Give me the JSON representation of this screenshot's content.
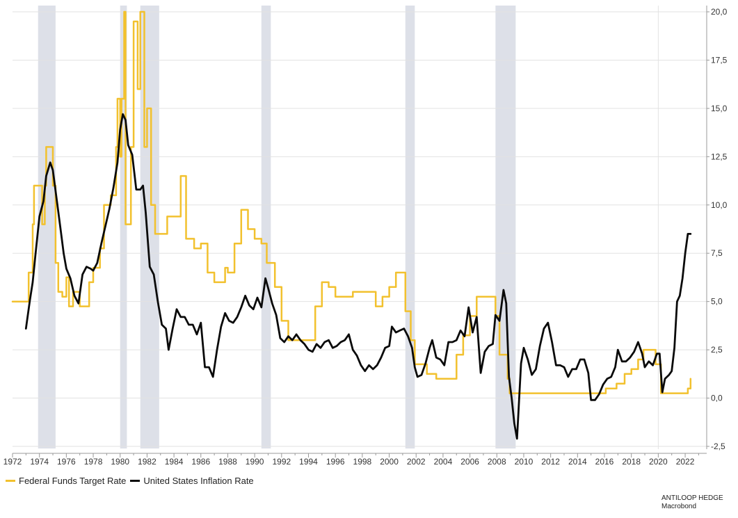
{
  "colors": {
    "fed_funds": "#F2C12E",
    "inflation": "#0a0a0a",
    "recession": "#dde0e8",
    "grid": "#e2e2e2"
  },
  "legend": {
    "fed_funds_label": "Federal Funds Target Rate",
    "inflation_label": "United States Inflation Rate"
  },
  "credit": {
    "line1": "ANTILOOP HEDGE",
    "line2": "Macrobond"
  },
  "chart_data": {
    "type": "line",
    "title": "",
    "xlabel": "",
    "ylabel": "",
    "xlim": [
      1972.0,
      2023.6
    ],
    "ylim": [
      -2.5,
      20.0
    ],
    "y_axis_position": "right",
    "grid": true,
    "legend_position": "bottom-left",
    "x_ticks": [
      1972,
      1974,
      1976,
      1978,
      1980,
      1982,
      1984,
      1986,
      1988,
      1990,
      1992,
      1994,
      1996,
      1998,
      2000,
      2002,
      2004,
      2006,
      2008,
      2010,
      2012,
      2014,
      2016,
      2018,
      2020,
      2022
    ],
    "y_ticks": [
      -2.5,
      0.0,
      2.5,
      5.0,
      7.5,
      10.0,
      12.5,
      15.0,
      17.5,
      20.0
    ],
    "y_tick_labels": [
      "-2,5",
      "0,0",
      "2,5",
      "5,0",
      "7,5",
      "10,0",
      "12,5",
      "15,0",
      "17,5",
      "20,0"
    ],
    "recessions": [
      [
        1973.9,
        1975.2
      ],
      [
        1980.0,
        1980.5
      ],
      [
        1981.5,
        1982.9
      ],
      [
        1990.5,
        1991.2
      ],
      [
        2001.2,
        2001.9
      ],
      [
        2007.9,
        2009.4
      ]
    ],
    "series": [
      {
        "name": "Federal Funds Target Rate",
        "points": [
          [
            1972.0,
            5.0
          ],
          [
            1973.0,
            5.0
          ],
          [
            1973.2,
            6.5
          ],
          [
            1973.5,
            9.0
          ],
          [
            1973.6,
            11.0
          ],
          [
            1974.1,
            11.0
          ],
          [
            1974.2,
            9.0
          ],
          [
            1974.4,
            11.0
          ],
          [
            1974.5,
            13.0
          ],
          [
            1974.9,
            13.0
          ],
          [
            1975.0,
            11.0
          ],
          [
            1975.2,
            7.0
          ],
          [
            1975.4,
            5.5
          ],
          [
            1975.7,
            5.25
          ],
          [
            1976.0,
            6.25
          ],
          [
            1976.2,
            4.75
          ],
          [
            1976.5,
            5.5
          ],
          [
            1977.0,
            4.75
          ],
          [
            1977.7,
            6.0
          ],
          [
            1978.0,
            6.75
          ],
          [
            1978.5,
            7.75
          ],
          [
            1978.8,
            10.0
          ],
          [
            1979.3,
            10.5
          ],
          [
            1979.7,
            13.0
          ],
          [
            1979.8,
            15.5
          ],
          [
            1980.0,
            12.5
          ],
          [
            1980.1,
            15.5
          ],
          [
            1980.3,
            20.0
          ],
          [
            1980.4,
            9.0
          ],
          [
            1980.6,
            9.0
          ],
          [
            1980.8,
            13.0
          ],
          [
            1981.0,
            19.5
          ],
          [
            1981.3,
            16.0
          ],
          [
            1981.5,
            20.0
          ],
          [
            1981.8,
            13.0
          ],
          [
            1982.0,
            15.0
          ],
          [
            1982.3,
            10.0
          ],
          [
            1982.6,
            8.5
          ],
          [
            1983.0,
            8.5
          ],
          [
            1983.5,
            9.4
          ],
          [
            1984.0,
            9.4
          ],
          [
            1984.5,
            11.5
          ],
          [
            1984.9,
            8.25
          ],
          [
            1985.5,
            7.75
          ],
          [
            1986.0,
            8.0
          ],
          [
            1986.5,
            6.5
          ],
          [
            1987.0,
            6.0
          ],
          [
            1987.8,
            6.75
          ],
          [
            1988.0,
            6.5
          ],
          [
            1988.5,
            8.0
          ],
          [
            1989.0,
            9.75
          ],
          [
            1989.5,
            8.75
          ],
          [
            1990.0,
            8.25
          ],
          [
            1990.5,
            8.0
          ],
          [
            1990.9,
            7.0
          ],
          [
            1991.5,
            5.75
          ],
          [
            1992.0,
            4.0
          ],
          [
            1992.5,
            3.0
          ],
          [
            1993.0,
            3.0
          ],
          [
            1994.0,
            3.0
          ],
          [
            1994.5,
            4.75
          ],
          [
            1995.0,
            6.0
          ],
          [
            1995.5,
            5.75
          ],
          [
            1996.0,
            5.25
          ],
          [
            1997.0,
            5.25
          ],
          [
            1997.3,
            5.5
          ],
          [
            1998.5,
            5.5
          ],
          [
            1999.0,
            4.75
          ],
          [
            1999.5,
            5.25
          ],
          [
            2000.0,
            5.75
          ],
          [
            2000.5,
            6.5
          ],
          [
            2000.9,
            6.5
          ],
          [
            2001.2,
            4.5
          ],
          [
            2001.6,
            3.0
          ],
          [
            2001.9,
            1.75
          ],
          [
            2002.8,
            1.25
          ],
          [
            2003.5,
            1.0
          ],
          [
            2004.4,
            1.0
          ],
          [
            2005.0,
            2.25
          ],
          [
            2005.5,
            3.25
          ],
          [
            2006.0,
            4.25
          ],
          [
            2006.5,
            5.25
          ],
          [
            2007.6,
            5.25
          ],
          [
            2007.9,
            4.25
          ],
          [
            2008.2,
            2.25
          ],
          [
            2008.8,
            1.0
          ],
          [
            2008.95,
            0.25
          ],
          [
            2015.9,
            0.25
          ],
          [
            2016.1,
            0.5
          ],
          [
            2016.9,
            0.75
          ],
          [
            2017.5,
            1.25
          ],
          [
            2018.0,
            1.5
          ],
          [
            2018.5,
            2.0
          ],
          [
            2018.9,
            2.5
          ],
          [
            2019.5,
            2.5
          ],
          [
            2019.8,
            1.75
          ],
          [
            2020.1,
            1.75
          ],
          [
            2020.2,
            0.25
          ],
          [
            2022.1,
            0.25
          ],
          [
            2022.2,
            0.5
          ],
          [
            2022.4,
            1.0
          ]
        ]
      },
      {
        "name": "United States Inflation Rate",
        "points": [
          [
            1973.0,
            3.6
          ],
          [
            1973.3,
            5.1
          ],
          [
            1973.5,
            6.0
          ],
          [
            1973.7,
            7.4
          ],
          [
            1974.0,
            9.4
          ],
          [
            1974.3,
            10.2
          ],
          [
            1974.5,
            11.5
          ],
          [
            1974.8,
            12.2
          ],
          [
            1975.0,
            11.8
          ],
          [
            1975.3,
            10.2
          ],
          [
            1975.6,
            8.6
          ],
          [
            1975.8,
            7.5
          ],
          [
            1976.0,
            6.7
          ],
          [
            1976.3,
            6.2
          ],
          [
            1976.6,
            5.3
          ],
          [
            1976.9,
            4.9
          ],
          [
            1977.2,
            6.4
          ],
          [
            1977.5,
            6.8
          ],
          [
            1977.8,
            6.7
          ],
          [
            1978.0,
            6.6
          ],
          [
            1978.3,
            7.0
          ],
          [
            1978.6,
            8.0
          ],
          [
            1978.9,
            8.9
          ],
          [
            1979.2,
            9.8
          ],
          [
            1979.5,
            10.9
          ],
          [
            1979.8,
            12.2
          ],
          [
            1980.0,
            13.9
          ],
          [
            1980.2,
            14.7
          ],
          [
            1980.4,
            14.4
          ],
          [
            1980.6,
            13.1
          ],
          [
            1980.9,
            12.6
          ],
          [
            1981.2,
            10.8
          ],
          [
            1981.5,
            10.8
          ],
          [
            1981.7,
            11.0
          ],
          [
            1981.9,
            9.6
          ],
          [
            1982.2,
            6.8
          ],
          [
            1982.5,
            6.4
          ],
          [
            1982.8,
            5.0
          ],
          [
            1983.1,
            3.8
          ],
          [
            1983.4,
            3.6
          ],
          [
            1983.6,
            2.5
          ],
          [
            1983.9,
            3.6
          ],
          [
            1984.2,
            4.6
          ],
          [
            1984.5,
            4.2
          ],
          [
            1984.8,
            4.2
          ],
          [
            1985.1,
            3.8
          ],
          [
            1985.4,
            3.8
          ],
          [
            1985.7,
            3.3
          ],
          [
            1986.0,
            3.9
          ],
          [
            1986.3,
            1.6
          ],
          [
            1986.6,
            1.6
          ],
          [
            1986.9,
            1.1
          ],
          [
            1987.2,
            2.5
          ],
          [
            1987.5,
            3.7
          ],
          [
            1987.8,
            4.4
          ],
          [
            1988.1,
            4.0
          ],
          [
            1988.4,
            3.9
          ],
          [
            1988.7,
            4.2
          ],
          [
            1989.0,
            4.7
          ],
          [
            1989.3,
            5.3
          ],
          [
            1989.6,
            4.8
          ],
          [
            1989.9,
            4.6
          ],
          [
            1990.2,
            5.2
          ],
          [
            1990.5,
            4.7
          ],
          [
            1990.8,
            6.2
          ],
          [
            1991.0,
            5.7
          ],
          [
            1991.3,
            4.9
          ],
          [
            1991.6,
            4.3
          ],
          [
            1991.9,
            3.1
          ],
          [
            1992.2,
            2.9
          ],
          [
            1992.5,
            3.2
          ],
          [
            1992.8,
            3.0
          ],
          [
            1993.1,
            3.3
          ],
          [
            1993.4,
            3.0
          ],
          [
            1993.7,
            2.8
          ],
          [
            1994.0,
            2.5
          ],
          [
            1994.3,
            2.4
          ],
          [
            1994.6,
            2.8
          ],
          [
            1994.9,
            2.6
          ],
          [
            1995.2,
            2.9
          ],
          [
            1995.5,
            3.0
          ],
          [
            1995.8,
            2.6
          ],
          [
            1996.1,
            2.7
          ],
          [
            1996.4,
            2.9
          ],
          [
            1996.7,
            3.0
          ],
          [
            1997.0,
            3.3
          ],
          [
            1997.3,
            2.5
          ],
          [
            1997.6,
            2.2
          ],
          [
            1997.9,
            1.7
          ],
          [
            1998.2,
            1.4
          ],
          [
            1998.5,
            1.7
          ],
          [
            1998.8,
            1.5
          ],
          [
            1999.1,
            1.7
          ],
          [
            1999.4,
            2.1
          ],
          [
            1999.7,
            2.6
          ],
          [
            2000.0,
            2.7
          ],
          [
            2000.2,
            3.7
          ],
          [
            2000.5,
            3.4
          ],
          [
            2000.8,
            3.5
          ],
          [
            2001.1,
            3.6
          ],
          [
            2001.4,
            3.2
          ],
          [
            2001.7,
            2.6
          ],
          [
            2001.9,
            1.6
          ],
          [
            2002.1,
            1.1
          ],
          [
            2002.4,
            1.2
          ],
          [
            2002.7,
            1.8
          ],
          [
            2003.0,
            2.6
          ],
          [
            2003.2,
            3.0
          ],
          [
            2003.5,
            2.1
          ],
          [
            2003.8,
            2.0
          ],
          [
            2004.1,
            1.7
          ],
          [
            2004.4,
            2.9
          ],
          [
            2004.7,
            2.9
          ],
          [
            2005.0,
            3.0
          ],
          [
            2005.3,
            3.5
          ],
          [
            2005.6,
            3.2
          ],
          [
            2005.9,
            4.7
          ],
          [
            2006.2,
            3.4
          ],
          [
            2006.5,
            4.2
          ],
          [
            2006.8,
            1.3
          ],
          [
            2007.1,
            2.4
          ],
          [
            2007.4,
            2.7
          ],
          [
            2007.7,
            2.8
          ],
          [
            2007.9,
            4.3
          ],
          [
            2008.2,
            4.0
          ],
          [
            2008.5,
            5.6
          ],
          [
            2008.7,
            4.9
          ],
          [
            2008.9,
            1.1
          ],
          [
            2009.1,
            0.0
          ],
          [
            2009.3,
            -1.3
          ],
          [
            2009.5,
            -2.1
          ],
          [
            2009.8,
            1.8
          ],
          [
            2010.0,
            2.6
          ],
          [
            2010.3,
            2.0
          ],
          [
            2010.6,
            1.2
          ],
          [
            2010.9,
            1.5
          ],
          [
            2011.2,
            2.7
          ],
          [
            2011.5,
            3.6
          ],
          [
            2011.8,
            3.9
          ],
          [
            2012.1,
            2.9
          ],
          [
            2012.4,
            1.7
          ],
          [
            2012.7,
            1.7
          ],
          [
            2013.0,
            1.6
          ],
          [
            2013.3,
            1.1
          ],
          [
            2013.6,
            1.5
          ],
          [
            2013.9,
            1.5
          ],
          [
            2014.2,
            2.0
          ],
          [
            2014.5,
            2.0
          ],
          [
            2014.8,
            1.3
          ],
          [
            2015.0,
            -0.1
          ],
          [
            2015.3,
            -0.1
          ],
          [
            2015.6,
            0.2
          ],
          [
            2015.9,
            0.7
          ],
          [
            2016.2,
            1.0
          ],
          [
            2016.5,
            1.1
          ],
          [
            2016.8,
            1.6
          ],
          [
            2017.0,
            2.5
          ],
          [
            2017.3,
            1.9
          ],
          [
            2017.6,
            1.9
          ],
          [
            2017.9,
            2.1
          ],
          [
            2018.2,
            2.4
          ],
          [
            2018.5,
            2.9
          ],
          [
            2018.8,
            2.3
          ],
          [
            2019.0,
            1.6
          ],
          [
            2019.3,
            1.9
          ],
          [
            2019.6,
            1.7
          ],
          [
            2019.9,
            2.3
          ],
          [
            2020.1,
            2.3
          ],
          [
            2020.3,
            0.3
          ],
          [
            2020.5,
            1.0
          ],
          [
            2020.8,
            1.2
          ],
          [
            2021.0,
            1.4
          ],
          [
            2021.2,
            2.6
          ],
          [
            2021.4,
            5.0
          ],
          [
            2021.6,
            5.3
          ],
          [
            2021.8,
            6.2
          ],
          [
            2022.0,
            7.5
          ],
          [
            2022.2,
            8.5
          ],
          [
            2022.4,
            8.5
          ]
        ]
      }
    ]
  }
}
